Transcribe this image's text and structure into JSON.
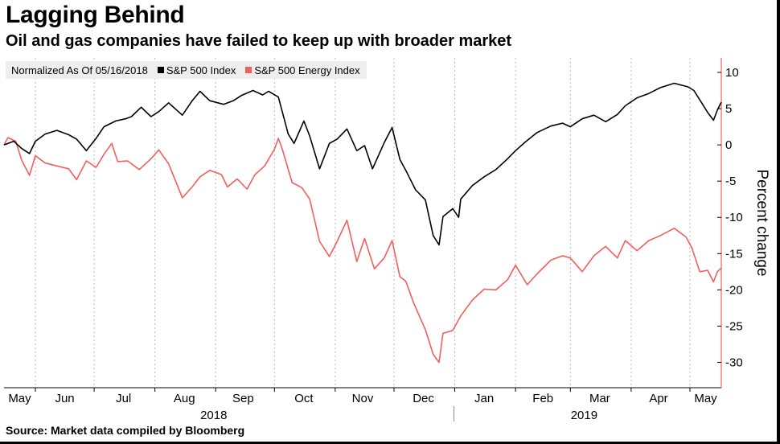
{
  "title": "Lagging Behind",
  "subtitle": "Oil and gas companies have failed to keep up with broader market",
  "legend": {
    "note": "Normalized As Of 05/16/2018",
    "items": [
      {
        "label": "S&P 500 Index",
        "color": "#000000"
      },
      {
        "label": "S&P 500 Energy Index",
        "color": "#f25f5c"
      }
    ]
  },
  "source": "Source: Market data compiled by Bloomberg",
  "chart_data": {
    "type": "line",
    "ylabel": "Percent change",
    "ylim": [
      -33.5,
      12
    ],
    "yticks": [
      10,
      5,
      0,
      -5,
      -10,
      -15,
      -20,
      -25,
      -30
    ],
    "y_axis_side": "right",
    "grid": "vertical dashed at month boundaries",
    "x_months": [
      "May",
      "Jun",
      "Jul",
      "Aug",
      "Sep",
      "Oct",
      "Nov",
      "Dec",
      "Jan",
      "Feb",
      "Mar",
      "Apr",
      "May"
    ],
    "years": [
      "2018",
      "2019"
    ],
    "x_range": [
      "2018-05-16",
      "2019-05-17"
    ],
    "legend_position": "top-left",
    "series": [
      {
        "name": "S&P 500 Index",
        "color": "#000000",
        "points": [
          [
            "2018-05-16",
            0
          ],
          [
            "2018-05-21",
            0.5
          ],
          [
            "2018-05-25",
            -0.5
          ],
          [
            "2018-05-29",
            -1.2
          ],
          [
            "2018-06-01",
            0.5
          ],
          [
            "2018-06-06",
            1.5
          ],
          [
            "2018-06-12",
            2
          ],
          [
            "2018-06-18",
            1.4
          ],
          [
            "2018-06-22",
            0.8
          ],
          [
            "2018-06-27",
            -0.8
          ],
          [
            "2018-07-02",
            0.9
          ],
          [
            "2018-07-06",
            2.5
          ],
          [
            "2018-07-12",
            3.3
          ],
          [
            "2018-07-17",
            3.6
          ],
          [
            "2018-07-20",
            3.9
          ],
          [
            "2018-07-25",
            5.2
          ],
          [
            "2018-07-30",
            3.9
          ],
          [
            "2018-08-03",
            4.6
          ],
          [
            "2018-08-08",
            5.8
          ],
          [
            "2018-08-15",
            4.1
          ],
          [
            "2018-08-20",
            6.1
          ],
          [
            "2018-08-24",
            7.4
          ],
          [
            "2018-08-29",
            6.1
          ],
          [
            "2018-09-05",
            5.6
          ],
          [
            "2018-09-10",
            6.1
          ],
          [
            "2018-09-14",
            6.8
          ],
          [
            "2018-09-20",
            7.5
          ],
          [
            "2018-09-25",
            6.9
          ],
          [
            "2018-09-28",
            7.4
          ],
          [
            "2018-10-03",
            6.6
          ],
          [
            "2018-10-08",
            1.5
          ],
          [
            "2018-10-11",
            0.2
          ],
          [
            "2018-10-16",
            3.3
          ],
          [
            "2018-10-19",
            1.2
          ],
          [
            "2018-10-24",
            -3.3
          ],
          [
            "2018-10-29",
            0.2
          ],
          [
            "2018-11-02",
            0.8
          ],
          [
            "2018-11-07",
            2.2
          ],
          [
            "2018-11-12",
            -0.8
          ],
          [
            "2018-11-16",
            -0.1
          ],
          [
            "2018-11-20",
            -3.3
          ],
          [
            "2018-11-26",
            0.3
          ],
          [
            "2018-11-30",
            2.4
          ],
          [
            "2018-12-04",
            -2.0
          ],
          [
            "2018-12-07",
            -3.5
          ],
          [
            "2018-12-12",
            -6.2
          ],
          [
            "2018-12-17",
            -7.6
          ],
          [
            "2018-12-21",
            -12.5
          ],
          [
            "2018-12-24",
            -13.8
          ],
          [
            "2018-12-26",
            -9.9
          ],
          [
            "2018-12-31",
            -8.8
          ],
          [
            "2019-01-03",
            -10.0
          ],
          [
            "2019-01-04",
            -7.5
          ],
          [
            "2019-01-10",
            -5.6
          ],
          [
            "2019-01-16",
            -4.4
          ],
          [
            "2019-01-22",
            -3.4
          ],
          [
            "2019-01-28",
            -1.9
          ],
          [
            "2019-02-01",
            -0.8
          ],
          [
            "2019-02-06",
            0.4
          ],
          [
            "2019-02-12",
            1.7
          ],
          [
            "2019-02-19",
            2.6
          ],
          [
            "2019-02-25",
            3.0
          ],
          [
            "2019-03-01",
            2.5
          ],
          [
            "2019-03-07",
            3.6
          ],
          [
            "2019-03-13",
            4.1
          ],
          [
            "2019-03-19",
            3.2
          ],
          [
            "2019-03-25",
            4.2
          ],
          [
            "2019-03-29",
            5.4
          ],
          [
            "2019-04-04",
            6.5
          ],
          [
            "2019-04-10",
            7.1
          ],
          [
            "2019-04-16",
            7.9
          ],
          [
            "2019-04-23",
            8.5
          ],
          [
            "2019-04-30",
            8.0
          ],
          [
            "2019-05-03",
            7.5
          ],
          [
            "2019-05-07",
            5.8
          ],
          [
            "2019-05-10",
            4.5
          ],
          [
            "2019-05-13",
            3.4
          ],
          [
            "2019-05-15",
            4.8
          ],
          [
            "2019-05-17",
            5.9
          ]
        ]
      },
      {
        "name": "S&P 500 Energy Index",
        "color": "#f25f5c",
        "points": [
          [
            "2018-05-16",
            0
          ],
          [
            "2018-05-18",
            1.0
          ],
          [
            "2018-05-22",
            0.5
          ],
          [
            "2018-05-25",
            -2.1
          ],
          [
            "2018-05-29",
            -4.2
          ],
          [
            "2018-06-01",
            -1.5
          ],
          [
            "2018-06-06",
            -2.5
          ],
          [
            "2018-06-12",
            -2.9
          ],
          [
            "2018-06-18",
            -3.3
          ],
          [
            "2018-06-22",
            -4.8
          ],
          [
            "2018-06-27",
            -2.2
          ],
          [
            "2018-07-02",
            -3.1
          ],
          [
            "2018-07-06",
            -1.3
          ],
          [
            "2018-07-10",
            0.2
          ],
          [
            "2018-07-13",
            -2.3
          ],
          [
            "2018-07-18",
            -2.2
          ],
          [
            "2018-07-24",
            -3.4
          ],
          [
            "2018-07-30",
            -1.9
          ],
          [
            "2018-08-03",
            -0.7
          ],
          [
            "2018-08-08",
            -2.6
          ],
          [
            "2018-08-15",
            -7.3
          ],
          [
            "2018-08-20",
            -5.8
          ],
          [
            "2018-08-24",
            -4.4
          ],
          [
            "2018-08-29",
            -3.5
          ],
          [
            "2018-09-04",
            -4.1
          ],
          [
            "2018-09-07",
            -5.8
          ],
          [
            "2018-09-12",
            -4.7
          ],
          [
            "2018-09-17",
            -6.1
          ],
          [
            "2018-09-21",
            -4.1
          ],
          [
            "2018-09-26",
            -2.9
          ],
          [
            "2018-10-01",
            -0.6
          ],
          [
            "2018-10-03",
            0.9
          ],
          [
            "2018-10-05",
            -0.6
          ],
          [
            "2018-10-10",
            -5.2
          ],
          [
            "2018-10-15",
            -5.9
          ],
          [
            "2018-10-19",
            -7.5
          ],
          [
            "2018-10-24",
            -13.3
          ],
          [
            "2018-10-29",
            -15.4
          ],
          [
            "2018-11-02",
            -13.3
          ],
          [
            "2018-11-07",
            -10.4
          ],
          [
            "2018-11-12",
            -16.1
          ],
          [
            "2018-11-16",
            -12.9
          ],
          [
            "2018-11-21",
            -17.1
          ],
          [
            "2018-11-26",
            -15.6
          ],
          [
            "2018-11-30",
            -13.2
          ],
          [
            "2018-12-04",
            -18.2
          ],
          [
            "2018-12-07",
            -18.8
          ],
          [
            "2018-12-11",
            -21.8
          ],
          [
            "2018-12-17",
            -25.5
          ],
          [
            "2018-12-21",
            -28.9
          ],
          [
            "2018-12-24",
            -30.0
          ],
          [
            "2018-12-26",
            -26.0
          ],
          [
            "2018-12-31",
            -25.6
          ],
          [
            "2019-01-04",
            -23.6
          ],
          [
            "2019-01-10",
            -21.4
          ],
          [
            "2019-01-16",
            -19.9
          ],
          [
            "2019-01-22",
            -20.0
          ],
          [
            "2019-01-28",
            -18.6
          ],
          [
            "2019-02-01",
            -16.6
          ],
          [
            "2019-02-07",
            -19.3
          ],
          [
            "2019-02-12",
            -17.8
          ],
          [
            "2019-02-19",
            -15.9
          ],
          [
            "2019-02-25",
            -15.3
          ],
          [
            "2019-03-01",
            -15.6
          ],
          [
            "2019-03-07",
            -17.5
          ],
          [
            "2019-03-13",
            -15.3
          ],
          [
            "2019-03-19",
            -14.0
          ],
          [
            "2019-03-25",
            -15.6
          ],
          [
            "2019-03-29",
            -13.2
          ],
          [
            "2019-04-04",
            -14.6
          ],
          [
            "2019-04-10",
            -13.2
          ],
          [
            "2019-04-16",
            -12.5
          ],
          [
            "2019-04-23",
            -11.5
          ],
          [
            "2019-04-29",
            -12.7
          ],
          [
            "2019-05-02",
            -14.2
          ],
          [
            "2019-05-06",
            -17.5
          ],
          [
            "2019-05-10",
            -17.3
          ],
          [
            "2019-05-13",
            -18.9
          ],
          [
            "2019-05-15",
            -17.5
          ],
          [
            "2019-05-17",
            -17.0
          ]
        ]
      }
    ]
  }
}
